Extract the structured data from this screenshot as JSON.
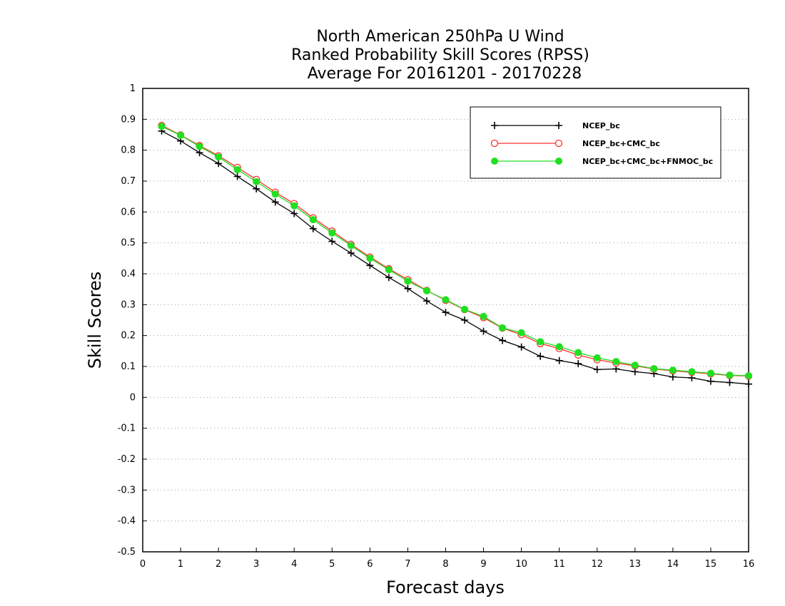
{
  "chart_data": {
    "type": "line",
    "title": [
      "North American 250hPa U Wind",
      "Ranked Probability Skill Scores (RPSS)",
      "Average For 20161201 - 20170228"
    ],
    "xlabel": "Forecast days",
    "ylabel": "Skill Scores",
    "xlim": [
      0,
      16
    ],
    "ylim": [
      -0.5,
      1
    ],
    "xticks": [
      0,
      1,
      2,
      3,
      4,
      5,
      6,
      7,
      8,
      9,
      10,
      11,
      12,
      13,
      14,
      15,
      16
    ],
    "yticks": [
      -0.5,
      -0.4,
      -0.3,
      -0.2,
      -0.1,
      0,
      0.1,
      0.2,
      0.3,
      0.4,
      0.5,
      0.6,
      0.7,
      0.8,
      0.9,
      1
    ],
    "ytick_labels": [
      "-0.5",
      "-0.4",
      "-0.3",
      "-0.2",
      "-0.1",
      "0",
      "0.1",
      "0.2",
      "0.3",
      "0.4",
      "0.5",
      "0.6",
      "0.7",
      "0.8",
      "0.9",
      "1"
    ],
    "grid": "horizontal dotted",
    "legend_position": "top-right",
    "x": [
      0.5,
      1,
      1.5,
      2,
      2.5,
      3,
      3.5,
      4,
      4.5,
      5,
      5.5,
      6,
      6.5,
      7,
      7.5,
      8,
      8.5,
      9,
      9.5,
      10,
      10.5,
      11,
      11.5,
      12,
      12.5,
      13,
      13.5,
      14,
      14.5,
      15,
      15.5,
      16
    ],
    "series": [
      {
        "name": "NCEP_bc",
        "color": "#000000",
        "marker": "plus",
        "values": [
          0.862,
          0.83,
          0.792,
          0.757,
          0.715,
          0.675,
          0.632,
          0.595,
          0.546,
          0.505,
          0.467,
          0.427,
          0.388,
          0.352,
          0.312,
          0.275,
          0.25,
          0.214,
          0.184,
          0.163,
          0.133,
          0.119,
          0.109,
          0.09,
          0.092,
          0.083,
          0.077,
          0.066,
          0.063,
          0.052,
          0.048,
          0.043
        ]
      },
      {
        "name": "NCEP_bc+CMC_bc",
        "color": "#ff3030",
        "marker": "open-circle",
        "values": [
          0.88,
          0.849,
          0.815,
          0.782,
          0.744,
          0.705,
          0.664,
          0.627,
          0.581,
          0.538,
          0.495,
          0.454,
          0.416,
          0.381,
          0.346,
          0.314,
          0.284,
          0.258,
          0.224,
          0.203,
          0.174,
          0.158,
          0.137,
          0.122,
          0.111,
          0.102,
          0.092,
          0.086,
          0.081,
          0.076,
          0.071,
          0.069
        ]
      },
      {
        "name": "NCEP_bc+CMC_bc+FNMOC_bc",
        "color": "#20e020",
        "marker": "filled-circle",
        "values": [
          0.877,
          0.848,
          0.812,
          0.778,
          0.737,
          0.698,
          0.658,
          0.62,
          0.575,
          0.532,
          0.491,
          0.45,
          0.413,
          0.376,
          0.345,
          0.316,
          0.285,
          0.262,
          0.225,
          0.209,
          0.18,
          0.164,
          0.145,
          0.128,
          0.116,
          0.104,
          0.093,
          0.088,
          0.083,
          0.078,
          0.072,
          0.07
        ]
      }
    ]
  }
}
